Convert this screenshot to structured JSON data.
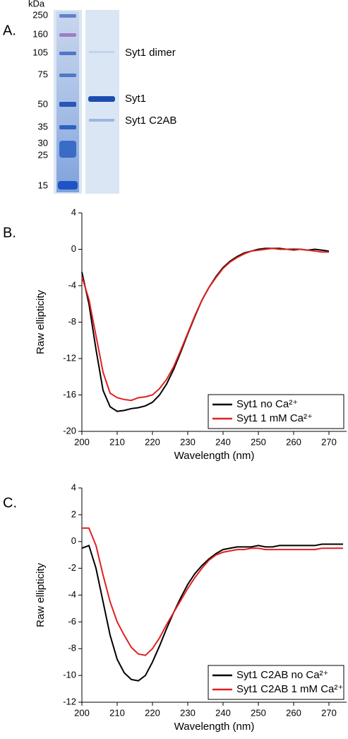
{
  "panel_labels": [
    "A.",
    "B.",
    "C."
  ],
  "gel": {
    "unit": "kDa",
    "markers": [
      250,
      160,
      105,
      75,
      50,
      35,
      30,
      25,
      15
    ],
    "bands": [
      "Syt1 dimer",
      "Syt1",
      "Syt1 C2AB"
    ]
  },
  "chart_data": [
    {
      "type": "line",
      "x_label": "Wavelength (nm)",
      "y_label": "Raw ellipticity",
      "x": [
        200,
        202,
        204,
        206,
        208,
        210,
        212,
        214,
        216,
        218,
        220,
        222,
        224,
        226,
        228,
        230,
        232,
        234,
        236,
        238,
        240,
        242,
        244,
        246,
        248,
        250,
        252,
        254,
        256,
        258,
        260,
        262,
        264,
        266,
        268,
        270
      ],
      "series": [
        {
          "name": "Syt1 no Ca²⁺",
          "color": "#000000",
          "values": [
            -2.5,
            -6,
            -11,
            -15.5,
            -17.3,
            -17.8,
            -17.7,
            -17.5,
            -17.4,
            -17.2,
            -16.8,
            -16.0,
            -14.8,
            -13.2,
            -11.3,
            -9.3,
            -7.4,
            -5.6,
            -4.2,
            -3.0,
            -2.0,
            -1.3,
            -0.8,
            -0.4,
            -0.2,
            0,
            0.1,
            0.1,
            0.1,
            0,
            0,
            0,
            -0.1,
            0,
            -0.1,
            -0.2
          ]
        },
        {
          "name": "Syt1 1 mM Ca²⁺",
          "color": "#e02020",
          "values": [
            -3,
            -5.5,
            -9.5,
            -13.5,
            -15.8,
            -16.3,
            -16.5,
            -16.6,
            -16.3,
            -16.2,
            -16.0,
            -15.3,
            -14.3,
            -12.9,
            -11.1,
            -9.2,
            -7.3,
            -5.6,
            -4.2,
            -3.1,
            -2.1,
            -1.4,
            -0.9,
            -0.5,
            -0.2,
            -0.1,
            0,
            0.1,
            0,
            0,
            -0.1,
            0,
            -0.1,
            -0.2,
            -0.3,
            -0.3
          ]
        }
      ],
      "xlim": [
        200,
        275
      ],
      "xticks": [
        200,
        210,
        220,
        230,
        240,
        250,
        260,
        270
      ],
      "ylim": [
        -20,
        4
      ],
      "yticks": [
        -20,
        -16,
        -12,
        -8,
        -4,
        0,
        4
      ],
      "legend": "lower right"
    },
    {
      "type": "line",
      "x_label": "Wavelength (nm)",
      "y_label": "Raw ellipticity",
      "x": [
        200,
        202,
        204,
        206,
        208,
        210,
        212,
        214,
        216,
        218,
        220,
        222,
        224,
        226,
        228,
        230,
        232,
        234,
        236,
        238,
        240,
        242,
        244,
        246,
        248,
        250,
        252,
        254,
        256,
        258,
        260,
        262,
        264,
        266,
        268,
        270,
        272,
        274
      ],
      "series": [
        {
          "name": "Syt1 C2AB no Ca²⁺",
          "color": "#000000",
          "values": [
            -0.5,
            -0.3,
            -2,
            -4.5,
            -7,
            -8.8,
            -9.8,
            -10.3,
            -10.4,
            -10.0,
            -9.0,
            -7.8,
            -6.5,
            -5.3,
            -4.2,
            -3.2,
            -2.4,
            -1.8,
            -1.3,
            -0.9,
            -0.6,
            -0.5,
            -0.4,
            -0.4,
            -0.4,
            -0.3,
            -0.4,
            -0.4,
            -0.3,
            -0.3,
            -0.3,
            -0.3,
            -0.3,
            -0.3,
            -0.2,
            -0.2,
            -0.2,
            -0.2
          ]
        },
        {
          "name": "Syt1 C2AB 1 mM Ca²⁺",
          "color": "#e02020",
          "values": [
            1.0,
            1.0,
            -0.3,
            -2.5,
            -4.5,
            -6.0,
            -7.0,
            -7.9,
            -8.4,
            -8.5,
            -8.0,
            -7.2,
            -6.2,
            -5.3,
            -4.4,
            -3.5,
            -2.7,
            -2.0,
            -1.4,
            -1.0,
            -0.8,
            -0.7,
            -0.6,
            -0.6,
            -0.5,
            -0.5,
            -0.6,
            -0.6,
            -0.6,
            -0.6,
            -0.6,
            -0.6,
            -0.6,
            -0.6,
            -0.5,
            -0.5,
            -0.5,
            -0.5
          ]
        }
      ],
      "xlim": [
        200,
        275
      ],
      "xticks": [
        200,
        210,
        220,
        230,
        240,
        250,
        260,
        270
      ],
      "ylim": [
        -12,
        4
      ],
      "yticks": [
        -12,
        -10,
        -8,
        -6,
        -4,
        -2,
        0,
        2,
        4
      ],
      "legend": "lower right"
    }
  ]
}
